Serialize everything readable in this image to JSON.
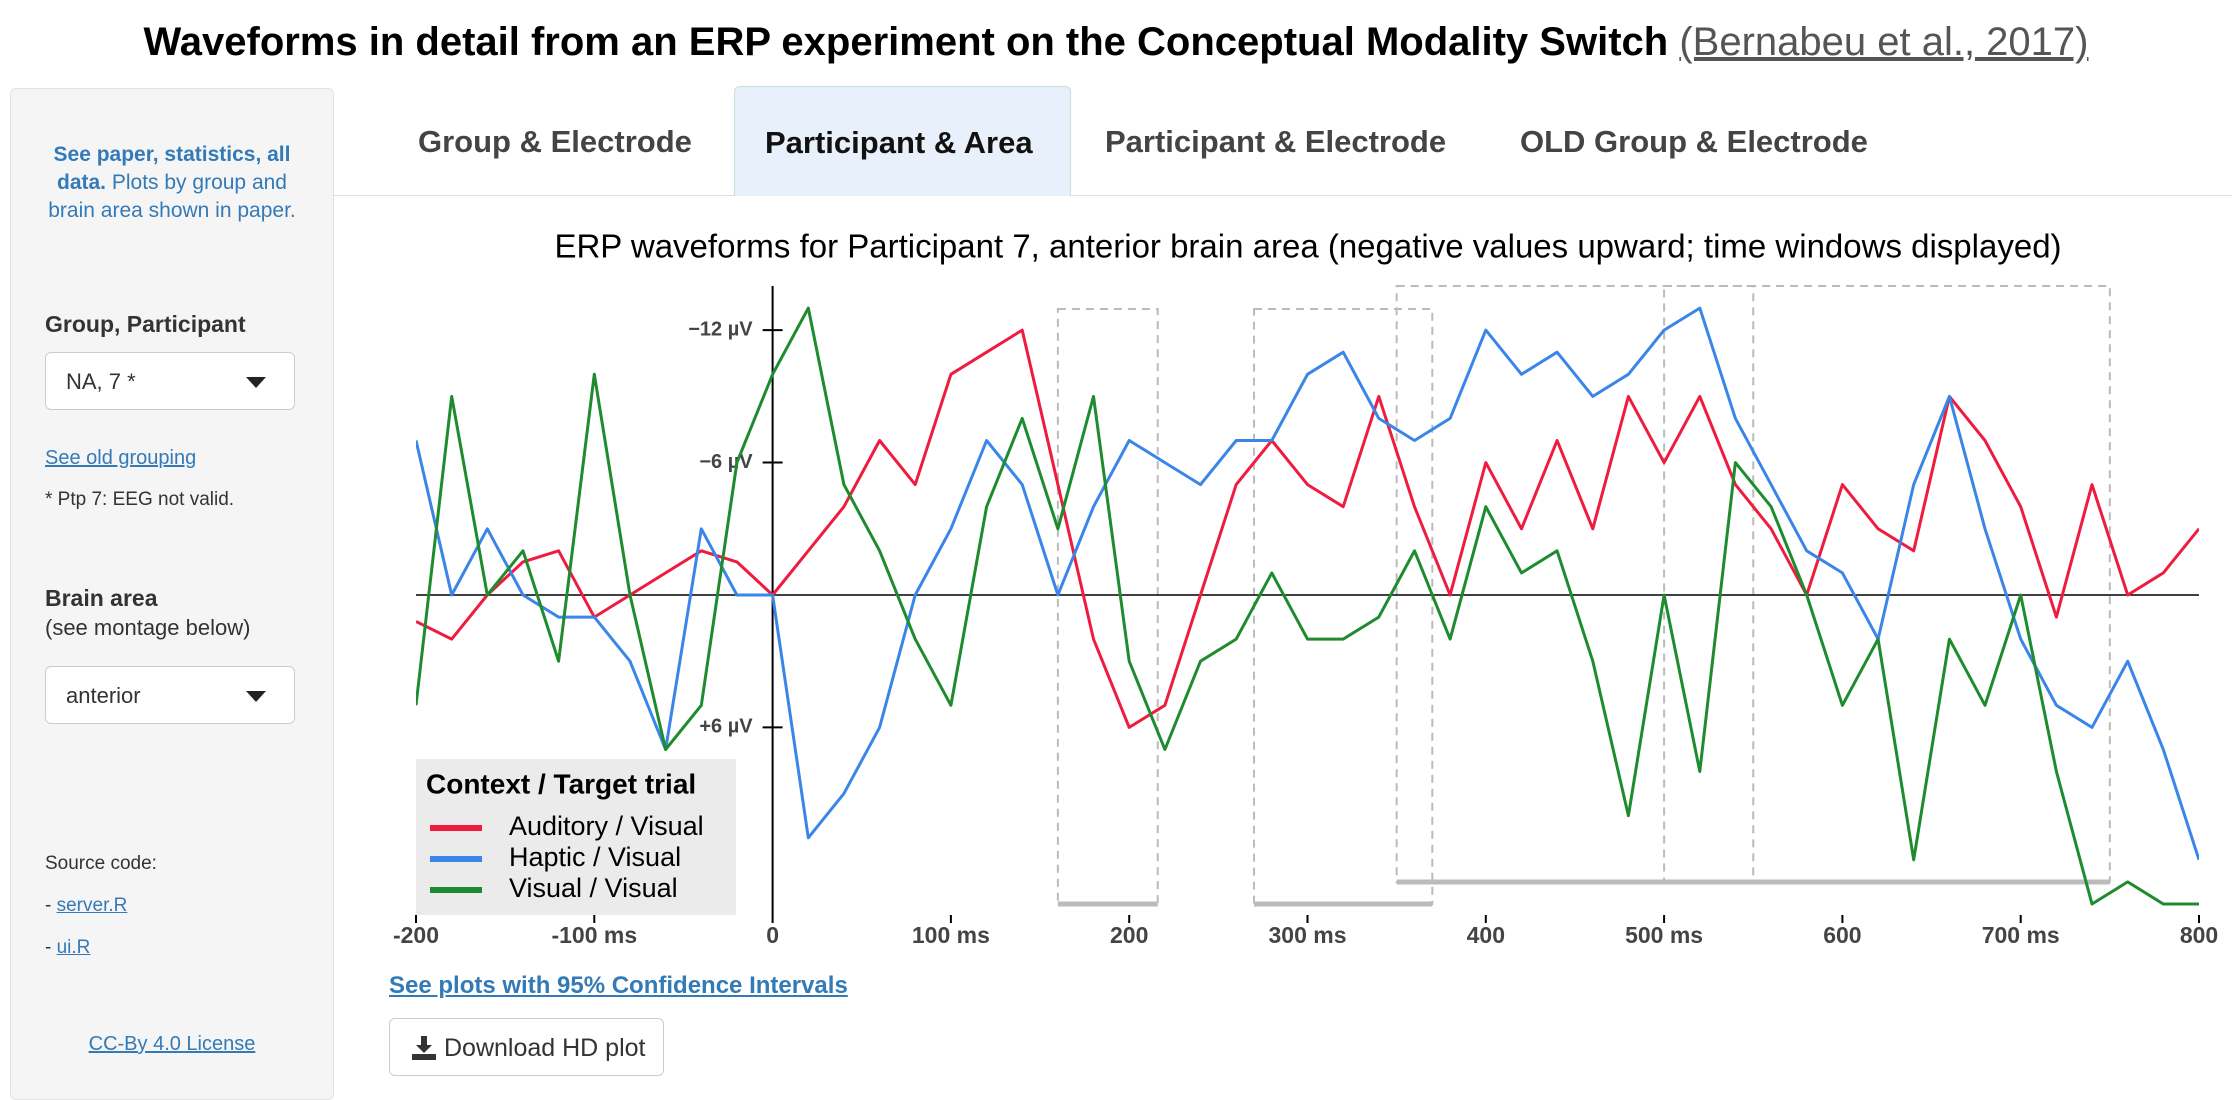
{
  "header": {
    "title": "Waveforms in detail from an ERP experiment on the Conceptual Modality Switch",
    "citation": "(Bernabeu et al., 2017)"
  },
  "sidebar": {
    "intro_bold": "See paper, statistics, all data.",
    "intro_rest": "Plots by group and brain area shown in paper.",
    "group_label": "Group, Participant",
    "group_value": "NA, 7 *",
    "old_grouping": "See old grouping",
    "note": "* Ptp 7: EEG not valid.",
    "area_label": "Brain area",
    "area_hint": "(see montage below)",
    "area_value": "anterior",
    "source_label": "Source code:",
    "source_links": [
      {
        "prefix": "-",
        "label": "server.R"
      },
      {
        "prefix": "-",
        "label": "ui.R"
      }
    ],
    "license": "CC-By 4.0 License"
  },
  "tabs": {
    "labels": [
      "Group & Electrode",
      "Participant & Area",
      "Participant & Electrode",
      "OLD Group & Electrode"
    ],
    "active": 1
  },
  "chart_data": {
    "type": "line",
    "title": "ERP waveforms for Participant 7, anterior brain area (negative values upward; time windows displayed)",
    "x": [
      -200,
      -180,
      -160,
      -140,
      -120,
      -100,
      -80,
      -60,
      -40,
      -20,
      0,
      20,
      40,
      60,
      80,
      100,
      120,
      140,
      160,
      180,
      200,
      220,
      240,
      260,
      280,
      300,
      320,
      340,
      360,
      380,
      400,
      420,
      440,
      460,
      480,
      500,
      520,
      540,
      560,
      580,
      600,
      620,
      640,
      660,
      680,
      700,
      720,
      740,
      760,
      780,
      800
    ],
    "series": [
      {
        "name": "Auditory / Visual",
        "color": "#ee1c3f",
        "values": [
          1.2,
          2,
          0,
          -1.5,
          -2,
          1,
          0,
          -1,
          -2,
          -1.5,
          0,
          -2,
          -4,
          -7,
          -5,
          -10,
          -11,
          -12,
          -5,
          2,
          6,
          5,
          0,
          -5,
          -7,
          -5,
          -4,
          -9,
          -4,
          0,
          -6,
          -3,
          -7,
          -3,
          -9,
          -6,
          -9,
          -5,
          -3,
          0,
          -5,
          -3,
          -2,
          -9,
          -7,
          -4,
          1,
          -5,
          0,
          -1,
          -3
        ]
      },
      {
        "name": "Haptic / Visual",
        "color": "#3a86e8",
        "values": [
          -7,
          0,
          -3,
          0,
          1,
          1,
          3,
          7,
          -3,
          0,
          0,
          11,
          9,
          6,
          0,
          -3,
          -7,
          -5,
          0,
          -4,
          -7,
          -6,
          -5,
          -7,
          -7,
          -10,
          -11,
          -8,
          -7,
          -8,
          -12,
          -10,
          -11,
          -9,
          -10,
          -12,
          -13,
          -8,
          -5,
          -2,
          -1,
          2,
          -5,
          -9,
          -3,
          2,
          5,
          6,
          3,
          7,
          12
        ]
      },
      {
        "name": "Visual / Visual",
        "color": "#1e8c2e",
        "values": [
          5,
          -9,
          0,
          -2,
          3,
          -10,
          0,
          7,
          5,
          -6,
          -10,
          -13,
          -5,
          -2,
          2,
          5,
          -4,
          -8,
          -3,
          -9,
          3,
          7,
          3,
          2,
          -1,
          2,
          2,
          1,
          -2,
          2,
          -4,
          -1,
          -2,
          3,
          10,
          0,
          8,
          -6,
          -4,
          0,
          5,
          2,
          12,
          2,
          5,
          0,
          8,
          14,
          13,
          14,
          14
        ]
      }
    ],
    "xlim": [
      -200,
      800
    ],
    "ylim": [
      -14,
      14.5
    ],
    "y_inverted": true,
    "xticks": [
      -200,
      {
        "value": -100,
        "label": "-100 ms"
      },
      0,
      {
        "value": 100,
        "label": "100 ms"
      },
      200,
      {
        "value": 300,
        "label": "300 ms"
      },
      400,
      {
        "value": 500,
        "label": "500 ms"
      },
      600,
      {
        "value": 700,
        "label": "700 ms"
      },
      800
    ],
    "yticks": [
      {
        "value": -12,
        "label": "−12 µV"
      },
      {
        "value": -6,
        "label": "−6 µV"
      },
      {
        "value": 6,
        "label": "+6 µV"
      }
    ],
    "time_windows": [
      [
        160,
        216
      ],
      [
        270,
        370
      ],
      [
        350,
        550
      ],
      [
        500,
        750
      ]
    ],
    "legend_title": "Context / Target trial",
    "legend": "bottom-left"
  },
  "below": {
    "ci_link": "See plots with 95% Confidence Intervals",
    "download": "Download HD plot"
  }
}
